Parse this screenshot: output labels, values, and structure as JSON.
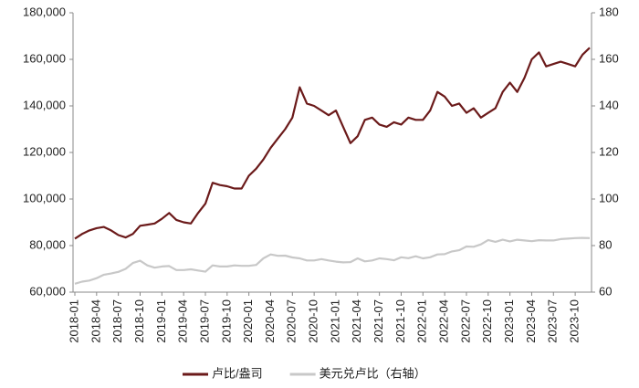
{
  "chart_data": {
    "type": "line",
    "categories": [
      "2018-01",
      null,
      null,
      "2018-04",
      null,
      null,
      "2018-07",
      null,
      null,
      "2018-10",
      null,
      null,
      "2019-01",
      null,
      null,
      "2019-04",
      null,
      null,
      "2019-07",
      null,
      null,
      "2019-10",
      null,
      null,
      "2020-01",
      null,
      null,
      "2020-04",
      null,
      null,
      "2020-07",
      null,
      null,
      "2020-10",
      null,
      null,
      "2021-01",
      null,
      null,
      "2021-04",
      null,
      null,
      "2021-07",
      null,
      null,
      "2021-10",
      null,
      null,
      "2022-01",
      null,
      null,
      "2022-04",
      null,
      null,
      "2022-07",
      null,
      null,
      "2022-10",
      null,
      null,
      "2023-01",
      null,
      null,
      "2023-04",
      null,
      null,
      "2023-07",
      null,
      null,
      "2023-10",
      null,
      null
    ],
    "series": [
      {
        "name": "卢比/盎司",
        "color": "#6b1a1a",
        "axis": "y",
        "values": [
          83000,
          85000,
          86500,
          87500,
          88000,
          86500,
          84500,
          83500,
          85000,
          88500,
          89000,
          89500,
          91500,
          94000,
          91000,
          90000,
          89500,
          94000,
          98000,
          107000,
          106000,
          105500,
          104500,
          104500,
          110000,
          113000,
          117000,
          122000,
          126000,
          130000,
          135000,
          148000,
          141000,
          140000,
          138000,
          136000,
          138000,
          131000,
          124000,
          127000,
          134000,
          135000,
          132000,
          131000,
          133000,
          132000,
          135000,
          134000,
          134000,
          138000,
          146000,
          144000,
          140000,
          141000,
          137000,
          139000,
          135000,
          137000,
          139000,
          146000,
          150000,
          146000,
          152000,
          160000,
          163000,
          157000,
          158000,
          159000,
          158000,
          157000,
          162000,
          165000
        ]
      },
      {
        "name": "美元兑卢比（右轴）",
        "color": "#c8c8c8",
        "axis": "y2",
        "values": [
          63.6,
          64.5,
          65,
          66,
          67.5,
          68,
          68.7,
          70,
          72.5,
          73.5,
          71.5,
          70.5,
          71,
          71.2,
          69.5,
          69.5,
          69.8,
          69.3,
          68.8,
          71.5,
          71,
          71,
          71.5,
          71.3,
          71.3,
          71.7,
          74.5,
          76.2,
          75.6,
          75.7,
          74.9,
          74.5,
          73.6,
          73.6,
          74.2,
          73.6,
          73.1,
          72.8,
          72.9,
          74.5,
          73.2,
          73.6,
          74.5,
          74.2,
          73.7,
          75,
          74.6,
          75.4,
          74.5,
          75,
          76.2,
          76.3,
          77.5,
          78,
          79.6,
          79.5,
          80.5,
          82.4,
          81.6,
          82.5,
          81.8,
          82.5,
          82.2,
          81.9,
          82.3,
          82.2,
          82.2,
          82.8,
          83,
          83.2,
          83.3,
          83.2
        ]
      }
    ],
    "ylim": [
      60000,
      180000
    ],
    "yticks": [
      {
        "value": 60000,
        "label": "60,000"
      },
      {
        "value": 80000,
        "label": "80,000"
      },
      {
        "value": 100000,
        "label": "100,000"
      },
      {
        "value": 120000,
        "label": "120,000"
      },
      {
        "value": 140000,
        "label": "140,000"
      },
      {
        "value": 160000,
        "label": "160,000"
      },
      {
        "value": 180000,
        "label": "180,000"
      }
    ],
    "y2lim": [
      60,
      180
    ],
    "y2ticks": [
      60,
      80,
      100,
      120,
      140,
      160,
      180
    ],
    "legend": "bottom"
  }
}
